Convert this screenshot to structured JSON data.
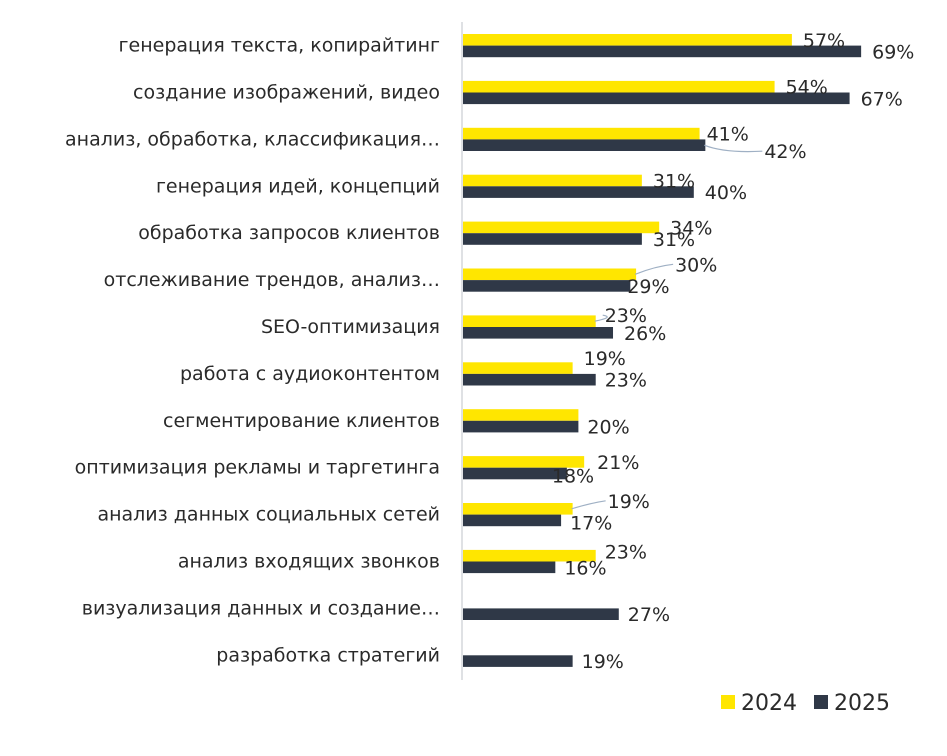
{
  "colors": {
    "y2024": "#FFE600",
    "y2025": "#2F3847",
    "axis": "#BFC3C8",
    "leader": "#9FB0C4",
    "text": "#2a2a2a"
  },
  "chart_data": {
    "type": "bar",
    "orientation": "horizontal",
    "categories": [
      "генерация текста, копирайтинг",
      "создание изображений, видео",
      "анализ, обработка, классификация…",
      "генерация идей, концепций",
      "обработка запросов клиентов",
      "отслеживание трендов, анализ…",
      "SEO-оптимизация",
      "работа с аудиоконтентом",
      "сегментирование клиентов",
      "оптимизация рекламы и таргетинга",
      "анализ данных социальных сетей",
      "анализ входящих звонков",
      "визуализация данных и создание…",
      "разработка стратегий"
    ],
    "series": [
      {
        "name": "2024",
        "values": [
          57,
          54,
          41,
          31,
          34,
          30,
          23,
          19,
          20,
          21,
          19,
          23,
          null,
          null
        ],
        "labels": [
          "57%",
          "54%",
          "41%",
          "31%",
          "34%",
          "30%",
          "23%",
          "19%",
          "",
          "21%",
          "19%",
          "23%",
          "",
          ""
        ]
      },
      {
        "name": "2025",
        "values": [
          69,
          67,
          42,
          40,
          31,
          29,
          26,
          23,
          20,
          18,
          17,
          16,
          27,
          19
        ],
        "labels": [
          "69%",
          "67%",
          "42%",
          "40%",
          "31%",
          "29%",
          "26%",
          "23%",
          "20%",
          "18%",
          "17%",
          "16%",
          "27%",
          "19%"
        ]
      }
    ],
    "xlim": [
      0,
      75
    ],
    "grid": false,
    "legend_position": "bottom-right"
  }
}
